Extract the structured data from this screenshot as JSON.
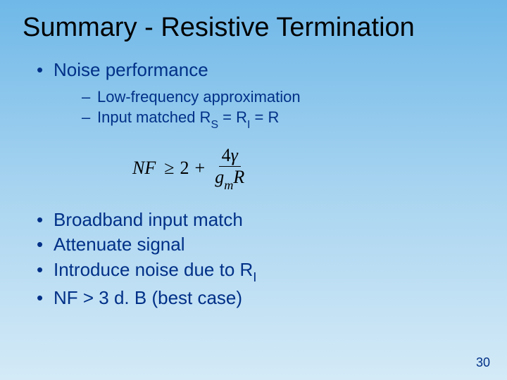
{
  "slide": {
    "title": "Summary - Resistive Termination",
    "pageNumber": "30"
  },
  "bullets": {
    "b1": "Noise performance",
    "sub1": "Low-frequency approximation",
    "sub2_pre": "Input matched R",
    "sub2_s": "S",
    "sub2_mid": " = R",
    "sub2_i": "I",
    "sub2_post": " = R",
    "b2": "Broadband input match",
    "b3": "Attenuate signal",
    "b4_pre": "Introduce noise due to R",
    "b4_i": "I",
    "b5": "NF > 3 d. B (best case)"
  },
  "equation": {
    "lhs": "NF",
    "geq": "≥",
    "const2": "2",
    "plus": "+",
    "numer_4": "4",
    "numer_gamma": "γ",
    "denom_g": "g",
    "denom_m": "m",
    "denom_R": "R"
  },
  "colors": {
    "text": "#003087",
    "title": "#000000",
    "bg_top": "#6fb8e8",
    "bg_bottom": "#d4eaf7"
  }
}
